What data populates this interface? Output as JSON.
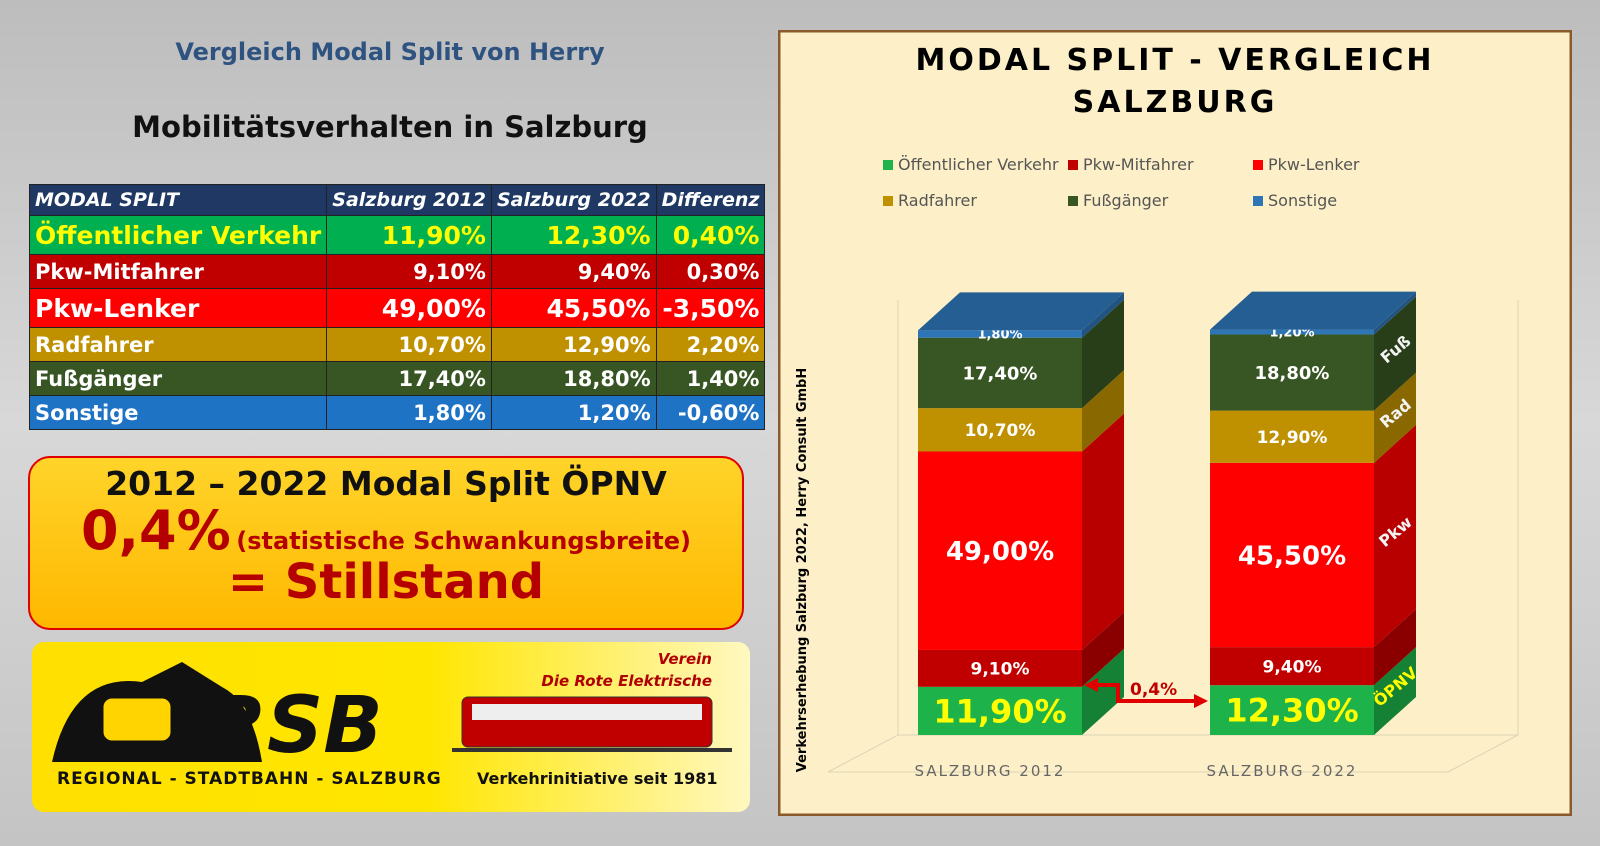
{
  "header": {
    "title": "Vergleich Modal Split von Herry",
    "subtitle": "Mobilitätsverhalten in Salzburg"
  },
  "table": {
    "header": [
      "MODAL SPLIT",
      "Salzburg 2012",
      "Salzburg 2022",
      "Differenz"
    ],
    "rows": [
      [
        "Öffentlicher Verkehr",
        "11,90%",
        "12,30%",
        "0,40%"
      ],
      [
        "Pkw-Mitfahrer",
        "9,10%",
        "9,40%",
        "0,30%"
      ],
      [
        "Pkw-Lenker",
        "49,00%",
        "45,50%",
        "-3,50%"
      ],
      [
        "Radfahrer",
        "10,70%",
        "12,90%",
        "2,20%"
      ],
      [
        "Fußgänger",
        "17,40%",
        "18,80%",
        "1,40%"
      ],
      [
        "Sonstige",
        "1,80%",
        "1,20%",
        "-0,60%"
      ]
    ]
  },
  "callout": {
    "line1": "2012 – 2022 Modal Split ÖPNV",
    "big": "0,4%",
    "note": "(statistische Schwankungsbreite)",
    "line3": "= Stillstand"
  },
  "logo": {
    "verein": "Verein",
    "name": "Die Rote Elektrische",
    "mark": "RSB",
    "footer": "REGIONAL - STADTBAHN - SALZBURG",
    "tagline": "Verkehrinitiative seit 1981"
  },
  "chart_data": {
    "type": "stacked_bar_3d",
    "title": "MODAL SPLIT - VERGLEICH",
    "subtitle": "SALZBURG",
    "ylabel": "Verkehrserhebung Salzburg 2022, Herry Consult GmbH",
    "categories": [
      "SALZBURG 2012",
      "SALZBURG 2022"
    ],
    "ylim": [
      0,
      100
    ],
    "annotation": "0,4%",
    "series": [
      {
        "name": "Öffentlicher Verkehr",
        "color": "#1db34a",
        "values": [
          11.9,
          12.3
        ],
        "value_labels": [
          "11,90%",
          "12,30%"
        ],
        "side_label": "ÖPNV"
      },
      {
        "name": "Pkw-Mitfahrer",
        "color": "#c00000",
        "values": [
          9.1,
          9.4
        ],
        "value_labels": [
          "9,10%",
          "9,40%"
        ]
      },
      {
        "name": "Pkw-Lenker",
        "color": "#ff0000",
        "values": [
          49.0,
          45.5
        ],
        "value_labels": [
          "49,00%",
          "45,50%"
        ],
        "side_label": "Pkw"
      },
      {
        "name": "Radfahrer",
        "color": "#bf9000",
        "values": [
          10.7,
          12.9
        ],
        "value_labels": [
          "10,70%",
          "12,90%"
        ],
        "side_label": "Rad"
      },
      {
        "name": "Fußgänger",
        "color": "#375623",
        "values": [
          17.4,
          18.8
        ],
        "value_labels": [
          "17,40%",
          "18,80%"
        ],
        "side_label": "Fuß"
      },
      {
        "name": "Sonstige",
        "color": "#2e75b6",
        "values": [
          1.8,
          1.2
        ],
        "value_labels": [
          "1,80%",
          "1,20%"
        ]
      }
    ]
  }
}
